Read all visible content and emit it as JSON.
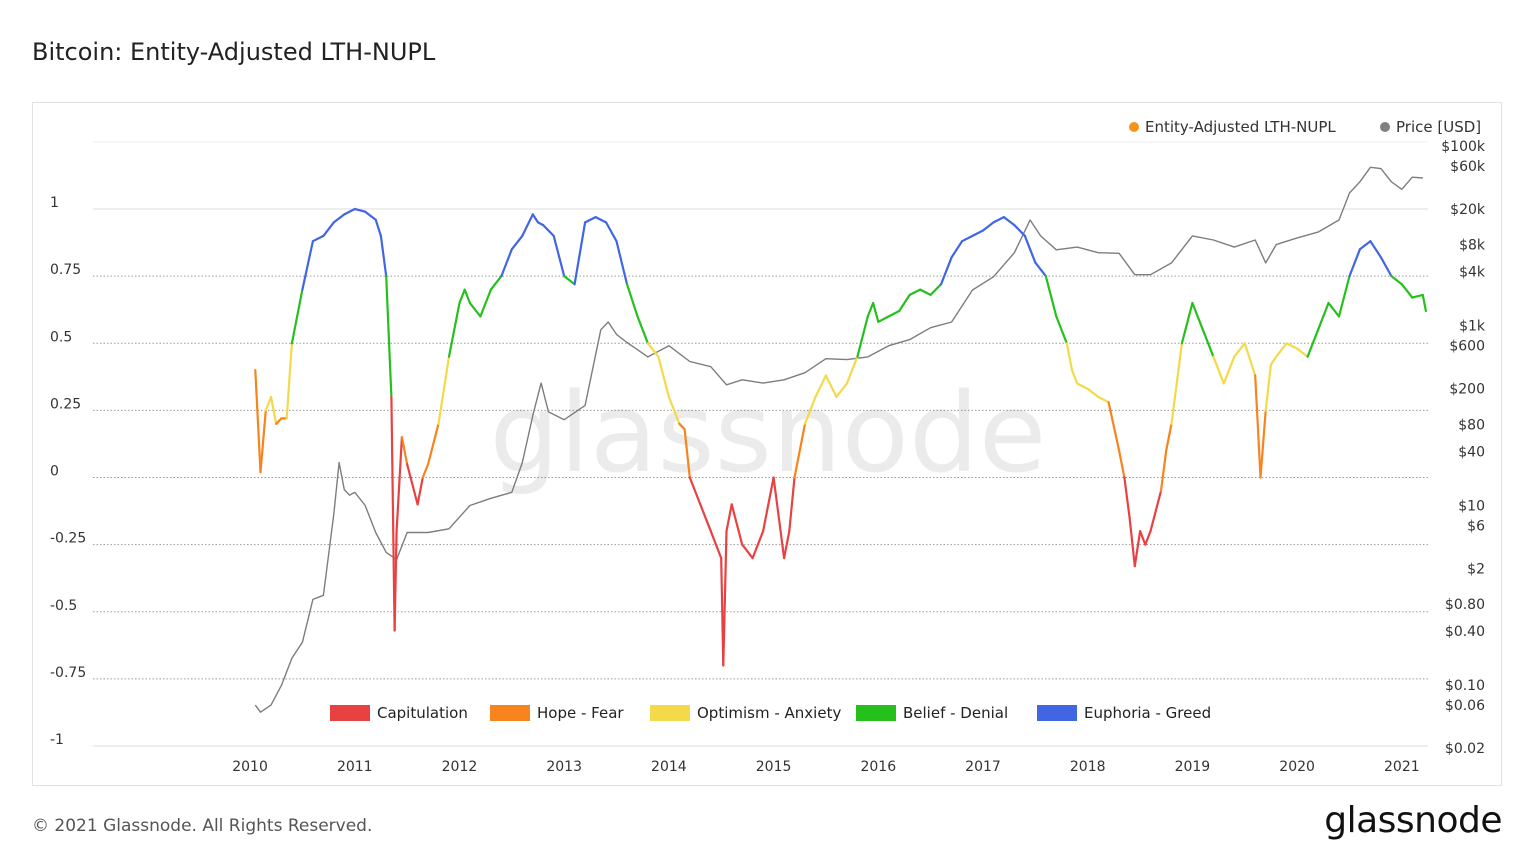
{
  "page": {
    "title": "Bitcoin: Entity-Adjusted LTH-NUPL",
    "copyright": "© 2021 Glassnode. All Rights Reserved.",
    "logo_text": "glassnode",
    "watermark": "glassnode"
  },
  "chart_data": {
    "type": "line",
    "title": "Bitcoin: Entity-Adjusted LTH-NUPL",
    "legend_top": [
      {
        "name": "Entity-Adjusted LTH-NUPL",
        "color": "#f7931a"
      },
      {
        "name": "Price [USD]",
        "color": "#808080"
      }
    ],
    "zones": [
      {
        "name": "Capitulation",
        "color": "#e84142",
        "min": -1.0,
        "max": 0.0
      },
      {
        "name": "Hope - Fear",
        "color": "#f7841d",
        "min": 0.0,
        "max": 0.25
      },
      {
        "name": "Optimism - Anxiety",
        "color": "#f4d94a",
        "min": 0.25,
        "max": 0.5
      },
      {
        "name": "Belief - Denial",
        "color": "#26c01d",
        "min": 0.5,
        "max": 0.75
      },
      {
        "name": "Euphoria - Greed",
        "color": "#4166e4",
        "min": 0.75,
        "max": 1.0
      }
    ],
    "x_ticks": [
      "2010",
      "2011",
      "2012",
      "2013",
      "2014",
      "2015",
      "2016",
      "2017",
      "2018",
      "2019",
      "2020",
      "2021"
    ],
    "x_range": [
      2009.0,
      2021.75
    ],
    "y_left": {
      "ticks": [
        1,
        0.75,
        0.5,
        0.25,
        0,
        -0.25,
        -0.5,
        -0.75,
        -1
      ],
      "tick_labels": [
        "1",
        "0.75",
        "0.5",
        "0.25",
        "0",
        "-0.25",
        "-0.5",
        "-0.75",
        "-1"
      ],
      "range": [
        -1,
        1
      ]
    },
    "y_right": {
      "scale": "log",
      "tick_labels": [
        "$100k",
        "$60k",
        "$20k",
        "$8k",
        "$4k",
        "$1k",
        "$600",
        "$200",
        "$80",
        "$40",
        "$10",
        "$6",
        "$2",
        "$0.80",
        "$0.40",
        "$0.10",
        "$0.06",
        "$0.02"
      ],
      "tick_values": [
        100000,
        60000,
        20000,
        8000,
        4000,
        1000,
        600,
        200,
        80,
        40,
        10,
        6,
        2,
        0.8,
        0.4,
        0.1,
        0.06,
        0.02
      ],
      "range": [
        0.02,
        100000
      ]
    },
    "grid": "horizontal dotted at left-axis ticks",
    "series": [
      {
        "name": "Entity-Adjusted LTH-NUPL",
        "x": [
          2010.55,
          2010.6,
          2010.65,
          2010.7,
          2010.75,
          2010.8,
          2010.85,
          2010.9,
          2011.0,
          2011.1,
          2011.2,
          2011.3,
          2011.4,
          2011.5,
          2011.6,
          2011.7,
          2011.75,
          2011.8,
          2011.85,
          2011.88,
          2011.9,
          2011.95,
          2012.0,
          2012.1,
          2012.15,
          2012.2,
          2012.3,
          2012.4,
          2012.5,
          2012.55,
          2012.6,
          2012.7,
          2012.8,
          2012.9,
          2013.0,
          2013.1,
          2013.2,
          2013.25,
          2013.3,
          2013.4,
          2013.5,
          2013.6,
          2013.7,
          2013.8,
          2013.9,
          2014.0,
          2014.1,
          2014.2,
          2014.3,
          2014.4,
          2014.5,
          2014.6,
          2014.65,
          2014.7,
          2014.8,
          2014.9,
          2015.0,
          2015.02,
          2015.05,
          2015.1,
          2015.2,
          2015.3,
          2015.4,
          2015.5,
          2015.6,
          2015.65,
          2015.7,
          2015.8,
          2015.9,
          2016.0,
          2016.1,
          2016.2,
          2016.3,
          2016.4,
          2016.45,
          2016.5,
          2016.6,
          2016.7,
          2016.8,
          2016.9,
          2017.0,
          2017.1,
          2017.2,
          2017.3,
          2017.4,
          2017.5,
          2017.6,
          2017.7,
          2017.8,
          2017.9,
          2017.95,
          2018.0,
          2018.1,
          2018.2,
          2018.3,
          2018.35,
          2018.4,
          2018.5,
          2018.6,
          2018.7,
          2018.8,
          2018.85,
          2018.9,
          2018.95,
          2019.0,
          2019.05,
          2019.1,
          2019.2,
          2019.25,
          2019.3,
          2019.4,
          2019.5,
          2019.6,
          2019.7,
          2019.8,
          2019.9,
          2020.0,
          2020.1,
          2020.15,
          2020.2,
          2020.25,
          2020.3,
          2020.4,
          2020.5,
          2020.6,
          2020.7,
          2020.8,
          2020.9,
          2021.0,
          2021.1,
          2021.2,
          2021.3,
          2021.4,
          2021.5,
          2021.6,
          2021.7,
          2021.73
        ],
        "values": [
          0.4,
          0.02,
          0.25,
          0.3,
          0.2,
          0.22,
          0.22,
          0.5,
          0.7,
          0.88,
          0.9,
          0.95,
          0.98,
          1.0,
          0.99,
          0.96,
          0.9,
          0.75,
          0.3,
          -0.57,
          -0.2,
          0.15,
          0.05,
          -0.1,
          0.0,
          0.05,
          0.2,
          0.45,
          0.65,
          0.7,
          0.65,
          0.6,
          0.7,
          0.75,
          0.85,
          0.9,
          0.98,
          0.95,
          0.94,
          0.9,
          0.75,
          0.72,
          0.95,
          0.97,
          0.95,
          0.88,
          0.72,
          0.6,
          0.5,
          0.45,
          0.3,
          0.2,
          0.18,
          0.0,
          -0.1,
          -0.2,
          -0.3,
          -0.7,
          -0.2,
          -0.1,
          -0.25,
          -0.3,
          -0.2,
          0.0,
          -0.3,
          -0.2,
          0.0,
          0.2,
          0.3,
          0.38,
          0.3,
          0.35,
          0.45,
          0.6,
          0.65,
          0.58,
          0.6,
          0.62,
          0.68,
          0.7,
          0.68,
          0.72,
          0.82,
          0.88,
          0.9,
          0.92,
          0.95,
          0.97,
          0.94,
          0.9,
          0.85,
          0.8,
          0.75,
          0.6,
          0.5,
          0.4,
          0.35,
          0.33,
          0.3,
          0.28,
          0.1,
          0.0,
          -0.15,
          -0.33,
          -0.2,
          -0.25,
          -0.2,
          -0.05,
          0.1,
          0.2,
          0.5,
          0.65,
          0.55,
          0.45,
          0.35,
          0.45,
          0.5,
          0.38,
          0.0,
          0.25,
          0.42,
          0.45,
          0.5,
          0.48,
          0.45,
          0.55,
          0.65,
          0.6,
          0.75,
          0.85,
          0.88,
          0.82,
          0.75,
          0.72,
          0.67,
          0.68,
          0.62
        ]
      },
      {
        "name": "Price [USD]",
        "x": [
          2010.55,
          2010.6,
          2010.7,
          2010.8,
          2010.9,
          2011.0,
          2011.1,
          2011.2,
          2011.3,
          2011.35,
          2011.4,
          2011.45,
          2011.5,
          2011.6,
          2011.7,
          2011.8,
          2011.9,
          2012.0,
          2012.2,
          2012.4,
          2012.6,
          2012.8,
          2013.0,
          2013.1,
          2013.2,
          2013.28,
          2013.35,
          2013.5,
          2013.7,
          2013.85,
          2013.92,
          2014.0,
          2014.1,
          2014.3,
          2014.5,
          2014.7,
          2014.9,
          2015.05,
          2015.2,
          2015.4,
          2015.6,
          2015.8,
          2016.0,
          2016.2,
          2016.4,
          2016.6,
          2016.8,
          2017.0,
          2017.2,
          2017.4,
          2017.6,
          2017.8,
          2017.95,
          2018.05,
          2018.2,
          2018.4,
          2018.6,
          2018.8,
          2018.95,
          2019.1,
          2019.3,
          2019.5,
          2019.7,
          2019.9,
          2020.1,
          2020.2,
          2020.3,
          2020.5,
          2020.7,
          2020.9,
          2021.0,
          2021.1,
          2021.2,
          2021.3,
          2021.4,
          2021.5,
          2021.6,
          2021.7
        ],
        "values": [
          0.06,
          0.05,
          0.06,
          0.1,
          0.2,
          0.3,
          0.9,
          1.0,
          8.0,
          30.0,
          15.0,
          13.0,
          14.0,
          10.0,
          5.0,
          3.0,
          2.5,
          5.0,
          5.0,
          5.5,
          10.0,
          12.0,
          14.0,
          30.0,
          100.0,
          230.0,
          110.0,
          90.0,
          130.0,
          900.0,
          1100.0,
          800.0,
          650.0,
          450.0,
          600.0,
          400.0,
          350.0,
          220.0,
          250.0,
          230.0,
          250.0,
          300.0,
          430.0,
          420.0,
          450.0,
          600.0,
          700.0,
          950.0,
          1100.0,
          2500.0,
          3500.0,
          6500.0,
          15000.0,
          10000.0,
          7000.0,
          7500.0,
          6500.0,
          6400.0,
          3700.0,
          3700.0,
          5000.0,
          10000.0,
          9000.0,
          7500.0,
          9000.0,
          5000.0,
          8000.0,
          9500.0,
          11000.0,
          15000.0,
          30000.0,
          40000.0,
          58000.0,
          56000.0,
          40000.0,
          33000.0,
          45000.0,
          44000.0
        ]
      }
    ]
  }
}
